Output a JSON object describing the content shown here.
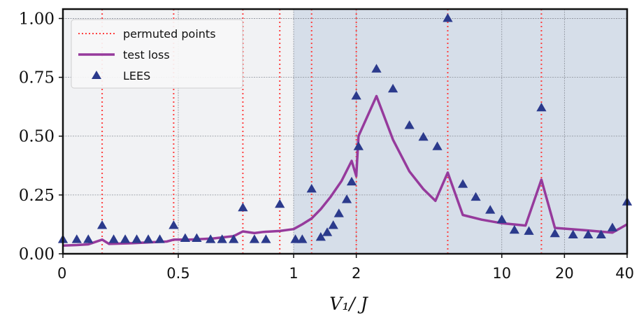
{
  "chart_data": {
    "type": "line",
    "title": "",
    "xlabel": "V₁/ J",
    "ylabel": "",
    "ylim": [
      0,
      1.04
    ],
    "x_scale": "piecewise: linear on [0,1] (left half), log on [1,40] (right half)",
    "xlim": [
      0,
      40
    ],
    "x_ticks": [
      {
        "value": 0,
        "label": "0"
      },
      {
        "value": 0.5,
        "label": "0.5"
      },
      {
        "value": 1,
        "label": "1"
      },
      {
        "value": 2,
        "label": "2"
      },
      {
        "value": 10,
        "label": "10"
      },
      {
        "value": 20,
        "label": "20"
      },
      {
        "value": 40,
        "label": "40"
      }
    ],
    "y_ticks": [
      {
        "value": 0,
        "label": "0.00"
      },
      {
        "value": 0.25,
        "label": "0.25"
      },
      {
        "value": 0.5,
        "label": "0.50"
      },
      {
        "value": 0.75,
        "label": "0.75"
      },
      {
        "value": 1.0,
        "label": "1.00"
      }
    ],
    "grid": true,
    "shaded_regions": [
      {
        "from": 0,
        "to": 1,
        "color": "#f1f2f4"
      },
      {
        "from": 1,
        "to": 40,
        "color": "#d6dee9"
      }
    ],
    "legend": {
      "placement": "top-left",
      "entries": [
        {
          "label": "permuted points",
          "style": "dotted-line",
          "color": "#ff4040"
        },
        {
          "label": "test loss",
          "style": "line",
          "color": "#963a9c"
        },
        {
          "label": "LEES",
          "style": "triangle",
          "color": "#2b3a8c"
        }
      ]
    },
    "series": [
      {
        "name": "permuted points",
        "style": "vertical-dotted",
        "color": "#ff4040",
        "x": [
          0.17,
          0.48,
          0.78,
          0.94,
          1.22,
          2.0,
          5.5,
          15.5
        ]
      },
      {
        "name": "test loss",
        "style": "line",
        "color": "#963a9c",
        "points": [
          [
            0,
            0.035
          ],
          [
            0.06,
            0.037
          ],
          [
            0.11,
            0.04
          ],
          [
            0.17,
            0.06
          ],
          [
            0.2,
            0.042
          ],
          [
            0.3,
            0.045
          ],
          [
            0.4,
            0.05
          ],
          [
            0.45,
            0.052
          ],
          [
            0.48,
            0.06
          ],
          [
            0.55,
            0.06
          ],
          [
            0.65,
            0.065
          ],
          [
            0.74,
            0.075
          ],
          [
            0.78,
            0.095
          ],
          [
            0.83,
            0.088
          ],
          [
            0.87,
            0.093
          ],
          [
            0.94,
            0.097
          ],
          [
            1.0,
            0.105
          ],
          [
            1.1,
            0.125
          ],
          [
            1.22,
            0.15
          ],
          [
            1.35,
            0.19
          ],
          [
            1.5,
            0.24
          ],
          [
            1.7,
            0.31
          ],
          [
            1.9,
            0.395
          ],
          [
            2.0,
            0.33
          ],
          [
            2.05,
            0.5
          ],
          [
            2.5,
            0.67
          ],
          [
            3.0,
            0.485
          ],
          [
            3.6,
            0.35
          ],
          [
            4.2,
            0.275
          ],
          [
            4.8,
            0.225
          ],
          [
            5.5,
            0.345
          ],
          [
            6.5,
            0.165
          ],
          [
            8.0,
            0.145
          ],
          [
            10.0,
            0.13
          ],
          [
            13.0,
            0.12
          ],
          [
            15.5,
            0.315
          ],
          [
            18.0,
            0.11
          ],
          [
            25.0,
            0.1
          ],
          [
            34.0,
            0.09
          ],
          [
            40.0,
            0.125
          ]
        ]
      },
      {
        "name": "LEES",
        "style": "triangle",
        "color": "#2b3a8c",
        "points": [
          [
            0,
            0.06
          ],
          [
            0.06,
            0.06
          ],
          [
            0.11,
            0.06
          ],
          [
            0.17,
            0.12
          ],
          [
            0.22,
            0.06
          ],
          [
            0.27,
            0.06
          ],
          [
            0.32,
            0.06
          ],
          [
            0.37,
            0.06
          ],
          [
            0.42,
            0.06
          ],
          [
            0.48,
            0.12
          ],
          [
            0.53,
            0.065
          ],
          [
            0.58,
            0.065
          ],
          [
            0.64,
            0.06
          ],
          [
            0.69,
            0.06
          ],
          [
            0.74,
            0.06
          ],
          [
            0.78,
            0.195
          ],
          [
            0.83,
            0.06
          ],
          [
            0.88,
            0.06
          ],
          [
            0.94,
            0.21
          ],
          [
            1.02,
            0.06
          ],
          [
            1.1,
            0.06
          ],
          [
            1.22,
            0.275
          ],
          [
            1.35,
            0.07
          ],
          [
            1.45,
            0.09
          ],
          [
            1.55,
            0.12
          ],
          [
            1.65,
            0.17
          ],
          [
            1.8,
            0.23
          ],
          [
            1.9,
            0.305
          ],
          [
            2.0,
            0.67
          ],
          [
            2.05,
            0.455
          ],
          [
            2.5,
            0.785
          ],
          [
            3.0,
            0.7
          ],
          [
            3.6,
            0.545
          ],
          [
            4.2,
            0.495
          ],
          [
            4.9,
            0.455
          ],
          [
            5.5,
            1.0
          ],
          [
            6.5,
            0.295
          ],
          [
            7.5,
            0.24
          ],
          [
            8.8,
            0.185
          ],
          [
            10.0,
            0.145
          ],
          [
            11.5,
            0.1
          ],
          [
            13.5,
            0.095
          ],
          [
            15.5,
            0.62
          ],
          [
            18.0,
            0.085
          ],
          [
            22.0,
            0.08
          ],
          [
            26.0,
            0.08
          ],
          [
            30.0,
            0.08
          ],
          [
            34.0,
            0.11
          ],
          [
            40.0,
            0.22
          ]
        ]
      }
    ]
  }
}
